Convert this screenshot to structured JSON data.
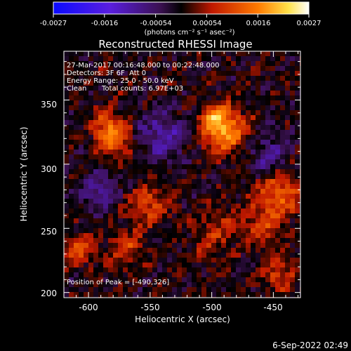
{
  "colorbar": {
    "tick_labels": [
      "-0.0027",
      "-0.0016",
      "-0.00054",
      "0.00054",
      "0.0016",
      "0.0027"
    ],
    "unit_label": "(photons cm⁻² s⁻¹ asec⁻²)",
    "range": [
      -0.0027,
      0.0027
    ]
  },
  "chart_data": {
    "type": "heatmap",
    "title": "Reconstructed RHESSI Image",
    "xlabel": "Heliocentric X (arcsec)",
    "ylabel": "Heliocentric Y (arcsec)",
    "xlim": [
      -620,
      -428
    ],
    "ylim": [
      196,
      388
    ],
    "x_ticks": [
      -600,
      -550,
      -500,
      -450
    ],
    "y_ticks": [
      200,
      250,
      300,
      350
    ],
    "peak": {
      "x": -490,
      "y": 326
    }
  },
  "annotations": {
    "time_range": "27-Mar-2017 00:16:48.000 to 00:22:48.000",
    "detectors": "Detectors: 3F 6F  Att 0",
    "energy_range": "Energy Range: 25.0 - 50.0 keV",
    "clean_label": "Clean",
    "total_counts": "Total counts: 6.97E+03",
    "peak_position": "Position of Peak = [-490,326]"
  },
  "timestamp": "6-Sep-2022 02:49"
}
